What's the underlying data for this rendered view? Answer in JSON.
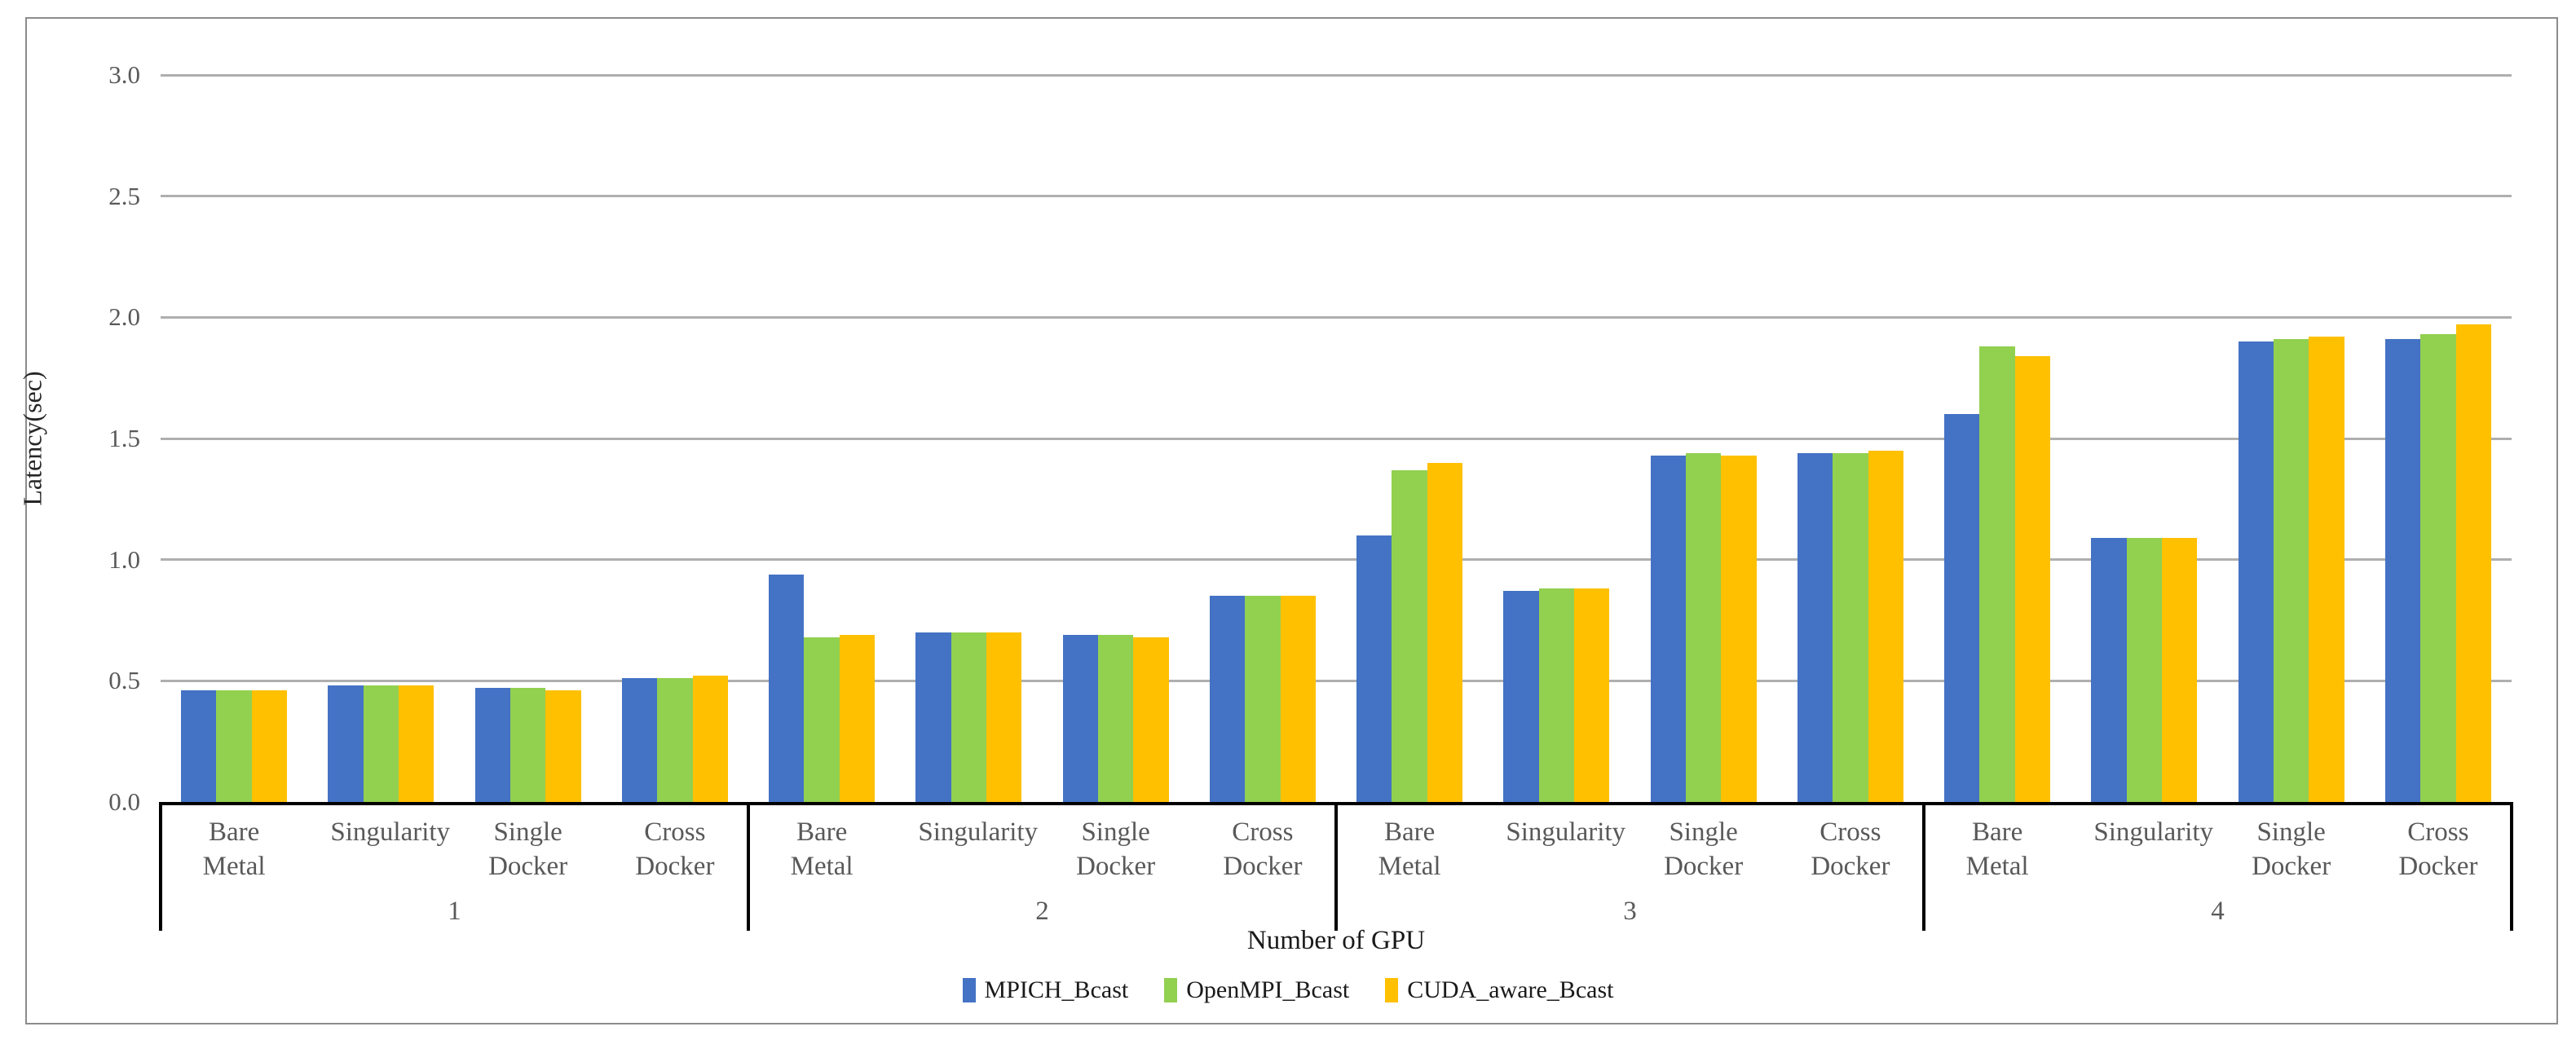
{
  "chart_data": {
    "type": "bar",
    "title": "",
    "xlabel": "Number of GPU",
    "ylabel": "Latency(sec)",
    "ylim": [
      0,
      3.0
    ],
    "grid": true,
    "legend_position": "bottom",
    "yticks": [
      {
        "label": "0.0",
        "value": 0.0
      },
      {
        "label": "0.5",
        "value": 0.5
      },
      {
        "label": "1.0",
        "value": 1.0
      },
      {
        "label": "1.5",
        "value": 1.5
      },
      {
        "label": "2.0",
        "value": 2.0
      },
      {
        "label": "2.5",
        "value": 2.5
      },
      {
        "label": "3.0",
        "value": 3.0
      }
    ],
    "groups": [
      "1",
      "2",
      "3",
      "4"
    ],
    "subcategories": [
      "Bare Metal",
      "Singularity",
      "Single Docker",
      "Cross Docker"
    ],
    "series": [
      {
        "name": "MPICH_Bcast",
        "color": "#4472C4",
        "values": [
          [
            0.46,
            0.48,
            0.47,
            0.51
          ],
          [
            0.94,
            0.7,
            0.69,
            0.85
          ],
          [
            1.1,
            0.87,
            1.43,
            1.44
          ],
          [
            1.6,
            1.09,
            1.9,
            1.91
          ]
        ]
      },
      {
        "name": "OpenMPI_Bcast",
        "color": "#92D050",
        "values": [
          [
            0.46,
            0.48,
            0.47,
            0.51
          ],
          [
            0.68,
            0.7,
            0.69,
            0.85
          ],
          [
            1.37,
            0.88,
            1.44,
            1.44
          ],
          [
            1.88,
            1.09,
            1.91,
            1.93
          ]
        ]
      },
      {
        "name": "CUDA_aware_Bcast",
        "color": "#FFC000",
        "values": [
          [
            0.46,
            0.48,
            0.46,
            0.52
          ],
          [
            0.69,
            0.7,
            0.68,
            0.85
          ],
          [
            1.4,
            0.88,
            1.43,
            1.45
          ],
          [
            1.84,
            1.09,
            1.92,
            1.97
          ]
        ]
      }
    ],
    "colors": {
      "gridline": "#AFAFAF",
      "axis": "#000000",
      "tick_text": "#595959",
      "figure_border": "#8C8C8C",
      "background": "#FFFFFF"
    }
  }
}
